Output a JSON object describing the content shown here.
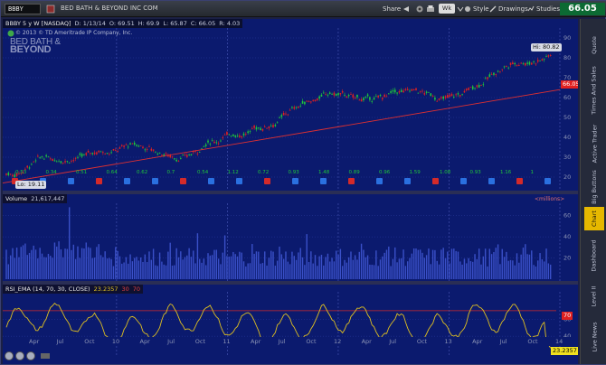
{
  "topbar": {
    "symbol": "BBBY",
    "company": "BED BATH & BEYOND INC COM",
    "share_label": "Share",
    "style_label": "Style",
    "drawings_label": "Drawings",
    "studies_label": "Studies",
    "last_price": "66.05",
    "last_price_color": "#0c6a33"
  },
  "price_pane": {
    "header": "BBBY 5 y W [NASDAQ]",
    "open": "D: 1/13/14",
    "open_val": "O: 69.51",
    "high_val": "H: 69.9",
    "low_val": "L: 65.87",
    "close_val": "C: 66.05",
    "change_val": "R: 4.03",
    "copyright": "© 2013 © TD Ameritrade IP Company, Inc.",
    "logo_text_1": "BED BATH &",
    "logo_text_2": "BEYOND",
    "hi_label": "Hi: 80.82",
    "lo_label": "Lo: 19.11",
    "current_tag": "66.05",
    "y_ticks": [
      "90",
      "80",
      "70",
      "60",
      "50",
      "40",
      "30",
      "20"
    ],
    "earnings_values": [
      "0.53",
      "0.34",
      "0.51",
      "0.64",
      "0.62",
      "0.7",
      "0.54",
      "1.12",
      "0.72",
      "0.93",
      "1.48",
      "0.89",
      "0.96",
      "1.59",
      "1.08",
      "0.93",
      "1.16",
      "1"
    ]
  },
  "volume_pane": {
    "title": "Volume",
    "value": "21,617,447",
    "units": "<millions>",
    "y_ticks": [
      "60",
      "40",
      "20"
    ]
  },
  "rsi_pane": {
    "title": "RSI_EMA (14, 70, 30, CLOSE)",
    "value": "23.2357",
    "ob_val": "30",
    "os_val": "70",
    "tag_70": "70",
    "tag_current": "23.2357",
    "y_ticks": [
      "60",
      "40"
    ]
  },
  "x_axis": {
    "labels": [
      "Apr",
      "Jul",
      "Oct",
      "10",
      "Apr",
      "Jul",
      "Oct",
      "11",
      "Apr",
      "Jul",
      "Oct",
      "12",
      "Apr",
      "Jul",
      "Oct",
      "13",
      "Apr",
      "Jul",
      "Oct",
      "14"
    ]
  },
  "right_tabs": [
    "Live News",
    "Level II",
    "Dashboard",
    "Chart",
    "Big Buttons",
    "Active Trader",
    "Times And Sales",
    "Quote"
  ],
  "colors": {
    "candle_up": "#1fc83a",
    "candle_down": "#e02020",
    "trendline": "#e03030",
    "rsi_line": "#e0c020",
    "volume_bar": "#3a50c8",
    "grid": "#2a3aa0",
    "dividend_tag": "#2a70e0",
    "earnings_tag": "#d42a2a"
  }
}
